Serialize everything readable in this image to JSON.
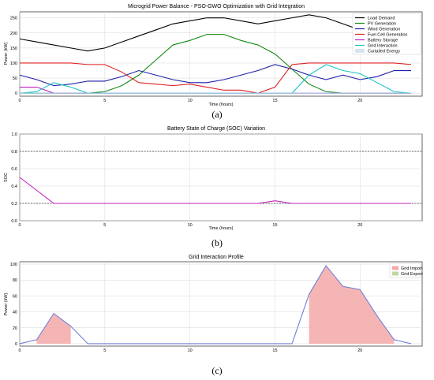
{
  "chart_data": [
    {
      "type": "line",
      "title": "Microgrid Power Balance - PSO-GWO Optimization with Grid Integration",
      "xlabel": "Time (hours)",
      "ylabel": "Power (kW)",
      "panel_label": "(a)",
      "xlim": [
        0,
        23
      ],
      "ylim": [
        -10,
        270
      ],
      "xticks": [
        0,
        5,
        10,
        15,
        20
      ],
      "yticks": [
        0,
        50,
        100,
        150,
        200,
        250
      ],
      "x": [
        0,
        1,
        2,
        3,
        4,
        5,
        6,
        7,
        8,
        9,
        10,
        11,
        12,
        13,
        14,
        15,
        16,
        17,
        18,
        19,
        20,
        21,
        22,
        23
      ],
      "legend_position": "top-right",
      "series": [
        {
          "name": "Load Demand",
          "color": "#000000",
          "values": [
            180,
            170,
            160,
            150,
            140,
            150,
            170,
            190,
            210,
            230,
            240,
            250,
            250,
            240,
            230,
            240,
            250,
            260,
            250,
            230,
            210,
            190,
            170,
            160
          ]
        },
        {
          "name": "PV Generation",
          "color": "#138a13",
          "values": [
            0,
            0,
            0,
            0,
            0,
            5,
            25,
            60,
            110,
            160,
            175,
            195,
            195,
            175,
            160,
            130,
            80,
            30,
            5,
            0,
            0,
            0,
            0,
            0
          ]
        },
        {
          "name": "Wind Generation",
          "color": "#1f1fa8",
          "values": [
            60,
            45,
            25,
            30,
            40,
            40,
            55,
            75,
            60,
            45,
            35,
            35,
            45,
            60,
            75,
            95,
            80,
            60,
            45,
            60,
            45,
            55,
            75,
            75
          ]
        },
        {
          "name": "Fuel Cell Generation",
          "color": "#e02020",
          "values": [
            100,
            100,
            100,
            100,
            95,
            95,
            70,
            35,
            30,
            25,
            30,
            20,
            10,
            10,
            0,
            20,
            95,
            100,
            100,
            100,
            100,
            100,
            100,
            95
          ]
        },
        {
          "name": "Battery Storage",
          "color": "#c020c0",
          "values": [
            20,
            20,
            0,
            0,
            0,
            0,
            0,
            0,
            0,
            0,
            0,
            0,
            0,
            0,
            0,
            0,
            0,
            0,
            0,
            0,
            0,
            0,
            0,
            0
          ]
        },
        {
          "name": "Grid Interaction",
          "color": "#18c4c4",
          "values": [
            0,
            5,
            35,
            20,
            0,
            0,
            0,
            0,
            0,
            0,
            0,
            0,
            0,
            0,
            0,
            0,
            0,
            60,
            95,
            75,
            65,
            35,
            5,
            0
          ]
        },
        {
          "name": "Curtailed Energy",
          "color": "#a8cce8",
          "values": [
            0,
            0,
            0,
            0,
            0,
            0,
            0,
            0,
            0,
            0,
            0,
            0,
            0,
            0,
            0,
            0,
            0,
            0,
            0,
            0,
            0,
            0,
            0,
            0
          ]
        }
      ]
    },
    {
      "type": "line",
      "title": "Battery State of Charge (SOC) Variation",
      "xlabel": "Time (hours)",
      "ylabel": "SOC",
      "panel_label": "(b)",
      "xlim": [
        0,
        23
      ],
      "ylim": [
        0,
        1.0
      ],
      "xticks": [
        0,
        5,
        10,
        15,
        20
      ],
      "yticks": [
        0.0,
        0.2,
        0.4,
        0.6,
        0.8,
        1.0
      ],
      "x": [
        0,
        1,
        2,
        3,
        4,
        5,
        6,
        7,
        8,
        9,
        10,
        11,
        12,
        13,
        14,
        15,
        16,
        17,
        18,
        19,
        20,
        21,
        22,
        23
      ],
      "reference_lines": [
        0.2,
        0.8
      ],
      "series": [
        {
          "name": "SOC",
          "color": "#c020c0",
          "values": [
            0.5,
            0.35,
            0.2,
            0.2,
            0.2,
            0.2,
            0.2,
            0.2,
            0.2,
            0.2,
            0.2,
            0.2,
            0.2,
            0.2,
            0.2,
            0.23,
            0.2,
            0.2,
            0.2,
            0.2,
            0.2,
            0.2,
            0.2,
            0.2
          ]
        }
      ]
    },
    {
      "type": "area",
      "title": "Grid Interaction Profile",
      "xlabel": "",
      "ylabel": "Power (kW)",
      "panel_label": "(c)",
      "xlim": [
        0,
        23
      ],
      "ylim": [
        -3,
        103
      ],
      "xticks": [
        0,
        5,
        10,
        15,
        20
      ],
      "yticks": [
        0,
        20,
        40,
        60,
        80,
        100
      ],
      "x": [
        0,
        1,
        2,
        3,
        4,
        5,
        6,
        7,
        8,
        9,
        10,
        11,
        12,
        13,
        14,
        15,
        16,
        17,
        18,
        19,
        20,
        21,
        22,
        23
      ],
      "legend_position": "top-right",
      "legend": [
        {
          "name": "Grid Import",
          "color": "#f4a8a8"
        },
        {
          "name": "Grid Export",
          "color": "#bcd9a0"
        }
      ],
      "series": [
        {
          "name": "Grid Interaction",
          "color": "#6e7fd6",
          "values": [
            0,
            5,
            38,
            22,
            0,
            0,
            0,
            0,
            0,
            0,
            0,
            0,
            0,
            0,
            0,
            0,
            0,
            62,
            98,
            72,
            68,
            35,
            5,
            0
          ]
        }
      ]
    }
  ]
}
